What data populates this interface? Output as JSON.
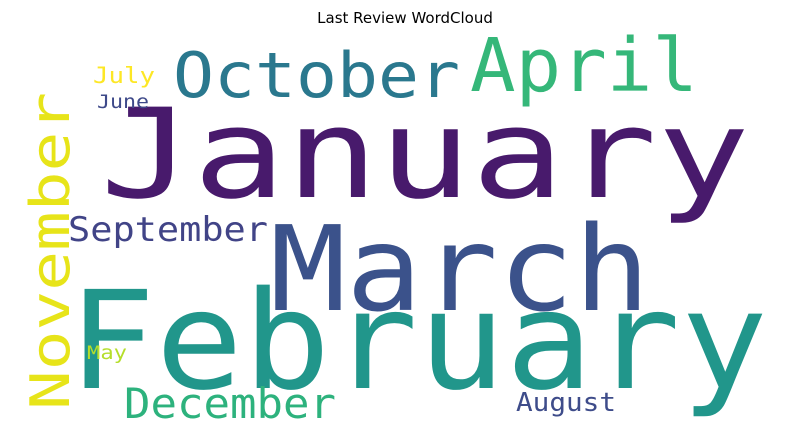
{
  "title": "Last Review WordCloud",
  "words": [
    {
      "text": "January",
      "color": "#481a6c"
    },
    {
      "text": "February",
      "color": "#21968b"
    },
    {
      "text": "March",
      "color": "#3b528b"
    },
    {
      "text": "April",
      "color": "#35b779"
    },
    {
      "text": "October",
      "color": "#2a788e"
    },
    {
      "text": "November",
      "color": "#e7e419"
    },
    {
      "text": "September",
      "color": "#414487"
    },
    {
      "text": "December",
      "color": "#2db27d"
    },
    {
      "text": "August",
      "color": "#3e4c8a"
    },
    {
      "text": "July",
      "color": "#fde725"
    },
    {
      "text": "June",
      "color": "#3e4989"
    },
    {
      "text": "May",
      "color": "#b5de2b"
    }
  ]
}
